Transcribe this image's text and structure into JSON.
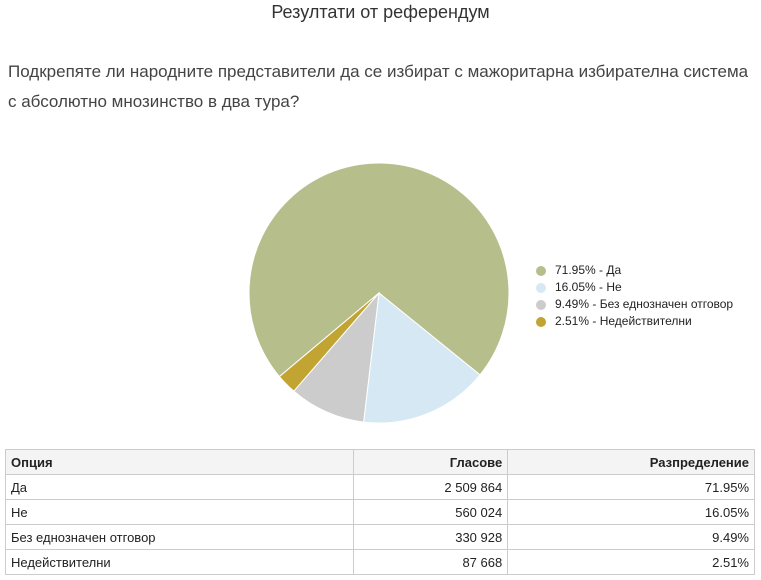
{
  "title": "Резултати от референдум",
  "question": "Подкрепяте ли народните представители да се избират с мажоритарна избирателна система с абсолютно мнозинство в два тура?",
  "chart_data": {
    "type": "pie",
    "labels": [
      "71.95% - Да",
      "16.05% - Не",
      "9.49% - Без еднозначен отговор",
      "2.51% - Недействителни"
    ],
    "values": [
      71.95,
      16.05,
      9.49,
      2.51
    ],
    "colors": [
      "#b6bf8c",
      "#d6e8f4",
      "#cccccc",
      "#c1a432"
    ]
  },
  "table": {
    "header": [
      "Опция",
      "Гласове",
      "Разпределение"
    ],
    "rows": [
      [
        "Да",
        "2 509 864",
        "71.95%"
      ],
      [
        "Не",
        "560 024",
        "16.05%"
      ],
      [
        "Без еднозначен отговор",
        "330 928",
        "9.49%"
      ],
      [
        "Недействителни",
        "87 668",
        "2.51%"
      ]
    ]
  }
}
